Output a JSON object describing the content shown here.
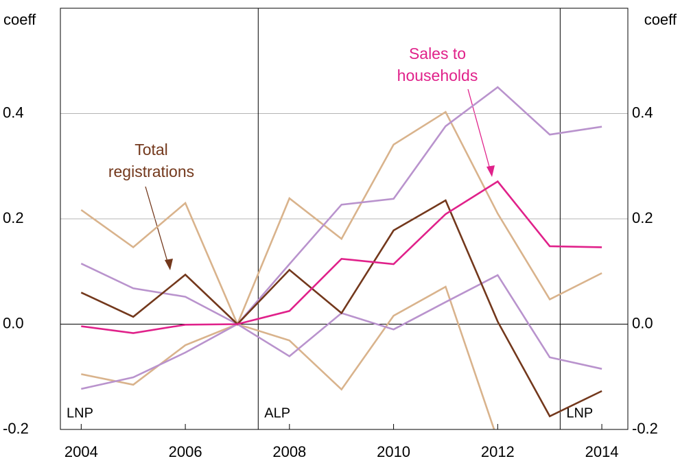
{
  "chart_data": {
    "type": "line",
    "ylabel": "coeff",
    "y2label": "coeff",
    "x": [
      2004,
      2005,
      2006,
      2007,
      2008,
      2009,
      2010,
      2011,
      2012,
      2013,
      2014
    ],
    "xlim": [
      2003.6,
      2014.5
    ],
    "xticks": [
      2004,
      2006,
      2008,
      2010,
      2012,
      2014
    ],
    "ylim": [
      -0.2,
      0.6
    ],
    "yticks": [
      -0.2,
      {
        "value": 0,
        "label": "0.0"
      },
      0.2,
      0.4
    ],
    "y2lim": [
      -0.2,
      0.6
    ],
    "y2ticks": [
      -0.2,
      {
        "value": 0,
        "label": "0.0"
      },
      0.2,
      0.4
    ],
    "grid": true,
    "govt_changes": [
      2007.4,
      2013.2
    ],
    "period_labels": [
      "LNP",
      "ALP",
      "LNP"
    ],
    "series": [
      {
        "color": "#d9b38c",
        "values": [
          0.217,
          0.146,
          0.23,
          0,
          0.239,
          0.162,
          0.341,
          0.403,
          0.21,
          0.047,
          0.097
        ]
      },
      {
        "color": "#d9b38c",
        "values": [
          -0.095,
          -0.115,
          -0.04,
          0,
          -0.031,
          -0.124,
          0.016,
          0.071,
          -0.22,
          null,
          null
        ]
      },
      {
        "color": "#b993cd",
        "values": [
          0.115,
          0.068,
          0.052,
          0,
          0.114,
          0.227,
          0.238,
          0.376,
          0.45,
          0.36,
          0.375
        ]
      },
      {
        "color": "#b993cd",
        "values": [
          -0.123,
          -0.101,
          -0.054,
          0,
          -0.061,
          0.021,
          -0.01,
          0.042,
          0.093,
          -0.063,
          -0.085
        ]
      },
      {
        "name": "Total registrations",
        "color": "#73381c",
        "values": [
          0.06,
          0.014,
          0.094,
          0,
          0.103,
          0.021,
          0.178,
          0.235,
          0.005,
          -0.175,
          -0.127
        ]
      },
      {
        "name": "Sales to households",
        "color": "#e0218a",
        "values": [
          -0.004,
          -0.017,
          -0.001,
          0,
          0.025,
          0.124,
          0.114,
          0.209,
          0.271,
          0.148,
          0.146
        ]
      }
    ]
  }
}
